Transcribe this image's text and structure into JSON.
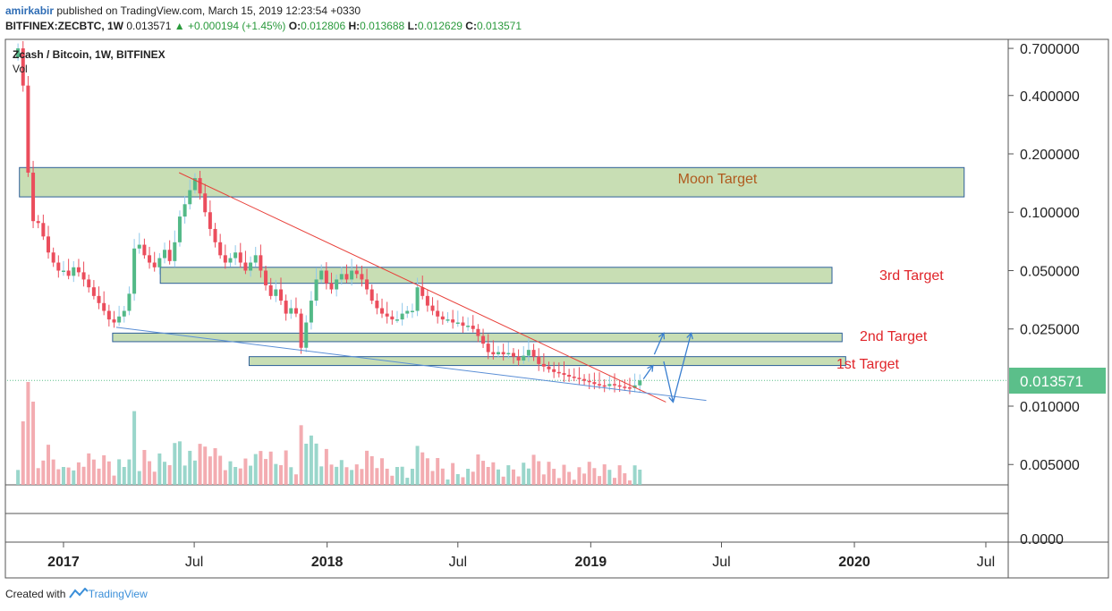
{
  "header": {
    "author": "amirkabir",
    "published_text": "published on TradingView.com, March 15, 2019 12:23:54 +0330",
    "symbol": "BITFINEX:ZECBTC, 1W",
    "last": "0.013571",
    "change": "▲ +0.000194 (+1.45%)",
    "o_label": "O:",
    "o_value": "0.012806",
    "h_label": "H:",
    "h_value": "0.013688",
    "l_label": "L:",
    "l_value": "0.012629",
    "c_label": "C:",
    "c_value": "0.013571"
  },
  "legend": {
    "title": "Zcash / Bitcoin, 1W, BITFINEX",
    "vol": "Vol"
  },
  "price_badge": "0.013571",
  "footer": {
    "created_with": "Created with",
    "brand": "TradingView"
  },
  "colors": {
    "up": "#53b987",
    "down": "#eb4d5c",
    "zone_fill": "#c8deb4",
    "zone_stroke": "#2d5f99",
    "resistance": "#e8403a",
    "support": "#5b8fd6",
    "projection": "#3a7fd0",
    "moon_label": "#b05a1e",
    "target_label": "#e0252a",
    "badge": "#5bbf8a",
    "vol_up": "#8fd1c5",
    "vol_down": "#f2a3a8"
  },
  "chart_data": {
    "type": "candlestick",
    "title": "Zcash / Bitcoin, 1W, BITFINEX",
    "y_scale": "log",
    "y_ticks": [
      "0.700000",
      "0.400000",
      "0.200000",
      "0.100000",
      "0.050000",
      "0.025000",
      "0.010000",
      "0.005000"
    ],
    "y_range": [
      0.004,
      0.9
    ],
    "vol_pane_tick": "0.0000",
    "x_ticks": [
      {
        "label": "2017",
        "bold": true,
        "date": "2017-01-01"
      },
      {
        "label": "Jul",
        "bold": false,
        "date": "2017-07-01"
      },
      {
        "label": "2018",
        "bold": true,
        "date": "2018-01-01"
      },
      {
        "label": "Jul",
        "bold": false,
        "date": "2018-07-01"
      },
      {
        "label": "2019",
        "bold": true,
        "date": "2019-01-01"
      },
      {
        "label": "Jul",
        "bold": false,
        "date": "2019-07-01"
      },
      {
        "label": "2020",
        "bold": true,
        "date": "2020-01-01"
      },
      {
        "label": "Jul",
        "bold": false,
        "date": "2020-07-01"
      }
    ],
    "x_range": [
      "2016-10-15",
      "2020-08-01"
    ],
    "close_path": [
      [
        "2016-10-30",
        0.7
      ],
      [
        "2016-11-06",
        0.45
      ],
      [
        "2016-11-13",
        0.16
      ],
      [
        "2016-11-20",
        0.09
      ],
      [
        "2016-11-27",
        0.088
      ],
      [
        "2016-12-04",
        0.075
      ],
      [
        "2016-12-11",
        0.062
      ],
      [
        "2016-12-18",
        0.055
      ],
      [
        "2016-12-25",
        0.05
      ],
      [
        "2017-01-01",
        0.05
      ],
      [
        "2017-01-08",
        0.047
      ],
      [
        "2017-01-15",
        0.052
      ],
      [
        "2017-01-22",
        0.049
      ],
      [
        "2017-01-29",
        0.045
      ],
      [
        "2017-02-05",
        0.041
      ],
      [
        "2017-02-12",
        0.037
      ],
      [
        "2017-02-19",
        0.034
      ],
      [
        "2017-02-26",
        0.031
      ],
      [
        "2017-03-05",
        0.028
      ],
      [
        "2017-03-12",
        0.027
      ],
      [
        "2017-03-19",
        0.029
      ],
      [
        "2017-03-26",
        0.031
      ],
      [
        "2017-04-02",
        0.038
      ],
      [
        "2017-04-09",
        0.065
      ],
      [
        "2017-04-16",
        0.068
      ],
      [
        "2017-04-23",
        0.06
      ],
      [
        "2017-04-30",
        0.055
      ],
      [
        "2017-05-07",
        0.052
      ],
      [
        "2017-05-14",
        0.058
      ],
      [
        "2017-05-21",
        0.064
      ],
      [
        "2017-05-28",
        0.056
      ],
      [
        "2017-06-04",
        0.07
      ],
      [
        "2017-06-11",
        0.095
      ],
      [
        "2017-06-18",
        0.11
      ],
      [
        "2017-06-25",
        0.13
      ],
      [
        "2017-07-02",
        0.15
      ],
      [
        "2017-07-09",
        0.125
      ],
      [
        "2017-07-16",
        0.1
      ],
      [
        "2017-07-23",
        0.082
      ],
      [
        "2017-07-30",
        0.07
      ],
      [
        "2017-08-06",
        0.06
      ],
      [
        "2017-08-13",
        0.055
      ],
      [
        "2017-08-20",
        0.058
      ],
      [
        "2017-08-27",
        0.062
      ],
      [
        "2017-09-03",
        0.055
      ],
      [
        "2017-09-10",
        0.05
      ],
      [
        "2017-09-17",
        0.055
      ],
      [
        "2017-09-24",
        0.06
      ],
      [
        "2017-10-01",
        0.05
      ],
      [
        "2017-10-08",
        0.042
      ],
      [
        "2017-10-15",
        0.037
      ],
      [
        "2017-10-22",
        0.04
      ],
      [
        "2017-10-29",
        0.035
      ],
      [
        "2017-11-05",
        0.03
      ],
      [
        "2017-11-12",
        0.032
      ],
      [
        "2017-11-19",
        0.03
      ],
      [
        "2017-11-26",
        0.02
      ],
      [
        "2017-12-03",
        0.027
      ],
      [
        "2017-12-10",
        0.035
      ],
      [
        "2017-12-17",
        0.045
      ],
      [
        "2017-12-24",
        0.05
      ],
      [
        "2017-12-31",
        0.043
      ],
      [
        "2018-01-07",
        0.04
      ],
      [
        "2018-01-14",
        0.045
      ],
      [
        "2018-01-21",
        0.048
      ],
      [
        "2018-01-28",
        0.045
      ],
      [
        "2018-02-04",
        0.05
      ],
      [
        "2018-02-11",
        0.048
      ],
      [
        "2018-02-18",
        0.045
      ],
      [
        "2018-02-25",
        0.04
      ],
      [
        "2018-03-04",
        0.035
      ],
      [
        "2018-03-11",
        0.032
      ],
      [
        "2018-03-18",
        0.03
      ],
      [
        "2018-03-25",
        0.029
      ],
      [
        "2018-04-01",
        0.028
      ],
      [
        "2018-04-08",
        0.028
      ],
      [
        "2018-04-15",
        0.03
      ],
      [
        "2018-04-22",
        0.031
      ],
      [
        "2018-04-29",
        0.031
      ],
      [
        "2018-05-06",
        0.041
      ],
      [
        "2018-05-13",
        0.037
      ],
      [
        "2018-05-20",
        0.033
      ],
      [
        "2018-05-27",
        0.031
      ],
      [
        "2018-06-03",
        0.029
      ],
      [
        "2018-06-10",
        0.028
      ],
      [
        "2018-06-17",
        0.028
      ],
      [
        "2018-06-24",
        0.027
      ],
      [
        "2018-07-01",
        0.027
      ],
      [
        "2018-07-08",
        0.026
      ],
      [
        "2018-07-15",
        0.026
      ],
      [
        "2018-07-22",
        0.025
      ],
      [
        "2018-07-29",
        0.023
      ],
      [
        "2018-08-05",
        0.021
      ],
      [
        "2018-08-12",
        0.019
      ],
      [
        "2018-08-19",
        0.0185
      ],
      [
        "2018-08-26",
        0.019
      ],
      [
        "2018-09-02",
        0.0185
      ],
      [
        "2018-09-09",
        0.0188
      ],
      [
        "2018-09-16",
        0.018
      ],
      [
        "2018-09-23",
        0.0172
      ],
      [
        "2018-09-30",
        0.0182
      ],
      [
        "2018-10-07",
        0.0195
      ],
      [
        "2018-10-14",
        0.018
      ],
      [
        "2018-10-21",
        0.0165
      ],
      [
        "2018-10-28",
        0.016
      ],
      [
        "2018-11-04",
        0.0155
      ],
      [
        "2018-11-11",
        0.015
      ],
      [
        "2018-11-18",
        0.0148
      ],
      [
        "2018-11-25",
        0.0145
      ],
      [
        "2018-12-02",
        0.0142
      ],
      [
        "2018-12-09",
        0.014
      ],
      [
        "2018-12-16",
        0.0138
      ],
      [
        "2018-12-23",
        0.0135
      ],
      [
        "2018-12-30",
        0.0133
      ],
      [
        "2019-01-06",
        0.013
      ],
      [
        "2019-01-13",
        0.0128
      ],
      [
        "2019-01-20",
        0.0127
      ],
      [
        "2019-01-27",
        0.013
      ],
      [
        "2019-02-03",
        0.0128
      ],
      [
        "2019-02-10",
        0.0126
      ],
      [
        "2019-02-17",
        0.0125
      ],
      [
        "2019-02-24",
        0.0124
      ],
      [
        "2019-03-03",
        0.0128
      ],
      [
        "2019-03-10",
        0.01357
      ]
    ],
    "zones": [
      {
        "label": "Moon Target",
        "from": "2016-11-01",
        "to": "2020-06-01",
        "low": 0.12,
        "high": 0.17
      },
      {
        "label": "3rd Target",
        "from": "2017-05-15",
        "to": "2019-12-01",
        "low": 0.043,
        "high": 0.052
      },
      {
        "label": "2nd Target",
        "from": "2017-03-10",
        "to": "2019-12-15",
        "low": 0.0215,
        "high": 0.0238
      },
      {
        "label": "1st Target",
        "from": "2017-09-15",
        "to": "2019-12-20",
        "low": 0.0162,
        "high": 0.018
      }
    ],
    "resistance_line": [
      [
        "2017-06-10",
        0.16
      ],
      [
        "2019-04-15",
        0.0105
      ]
    ],
    "support_line": [
      [
        "2017-03-15",
        0.0255
      ],
      [
        "2019-06-10",
        0.0107
      ]
    ],
    "projections": [
      [
        [
          "2019-03-15",
          0.0138
        ],
        [
          "2019-03-28",
          0.0162
        ]
      ],
      [
        [
          "2019-03-30",
          0.0185
        ],
        [
          "2019-04-12",
          0.0238
        ]
      ],
      [
        [
          "2019-04-12",
          0.017
        ],
        [
          "2019-04-25",
          0.0105
        ]
      ],
      [
        [
          "2019-04-25",
          0.0105
        ],
        [
          "2019-05-20",
          0.0238
        ]
      ]
    ],
    "target_labels": [
      "3rd Target",
      "2nd Target",
      "1st Target"
    ]
  }
}
